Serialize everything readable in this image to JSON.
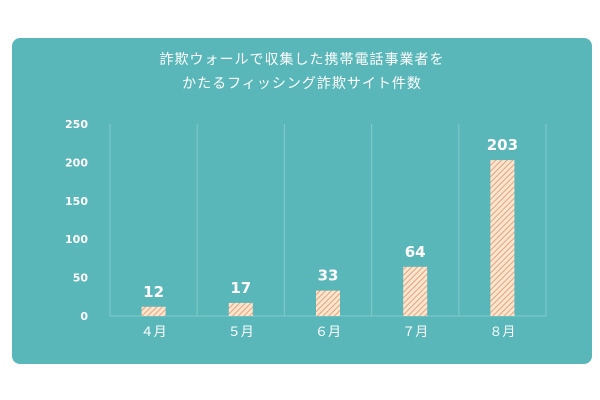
{
  "chart_data": {
    "type": "bar",
    "title_lines": [
      "詐欺ウォールで収集した携帯電話事業者を",
      "かたるフィッシング詐欺サイト件数"
    ],
    "categories": [
      "４月",
      "５月",
      "６月",
      "７月",
      "８月"
    ],
    "values": [
      12,
      17,
      33,
      64,
      203
    ],
    "data_labels": [
      "12",
      "17",
      "33",
      "64",
      "203"
    ],
    "y_ticks": [
      "0",
      "50",
      "100",
      "150",
      "200",
      "250"
    ],
    "y_tick_values": [
      0,
      50,
      100,
      150,
      200,
      250
    ],
    "ylim": [
      0,
      250
    ],
    "grid": "vertical separators",
    "legend": "none"
  },
  "colors": {
    "background": "#5ab7b9",
    "bar_fill": "#fde6d0",
    "bar_hatch": "#e9a07a",
    "text": "#ffffff",
    "grid": "#82cbcc"
  }
}
